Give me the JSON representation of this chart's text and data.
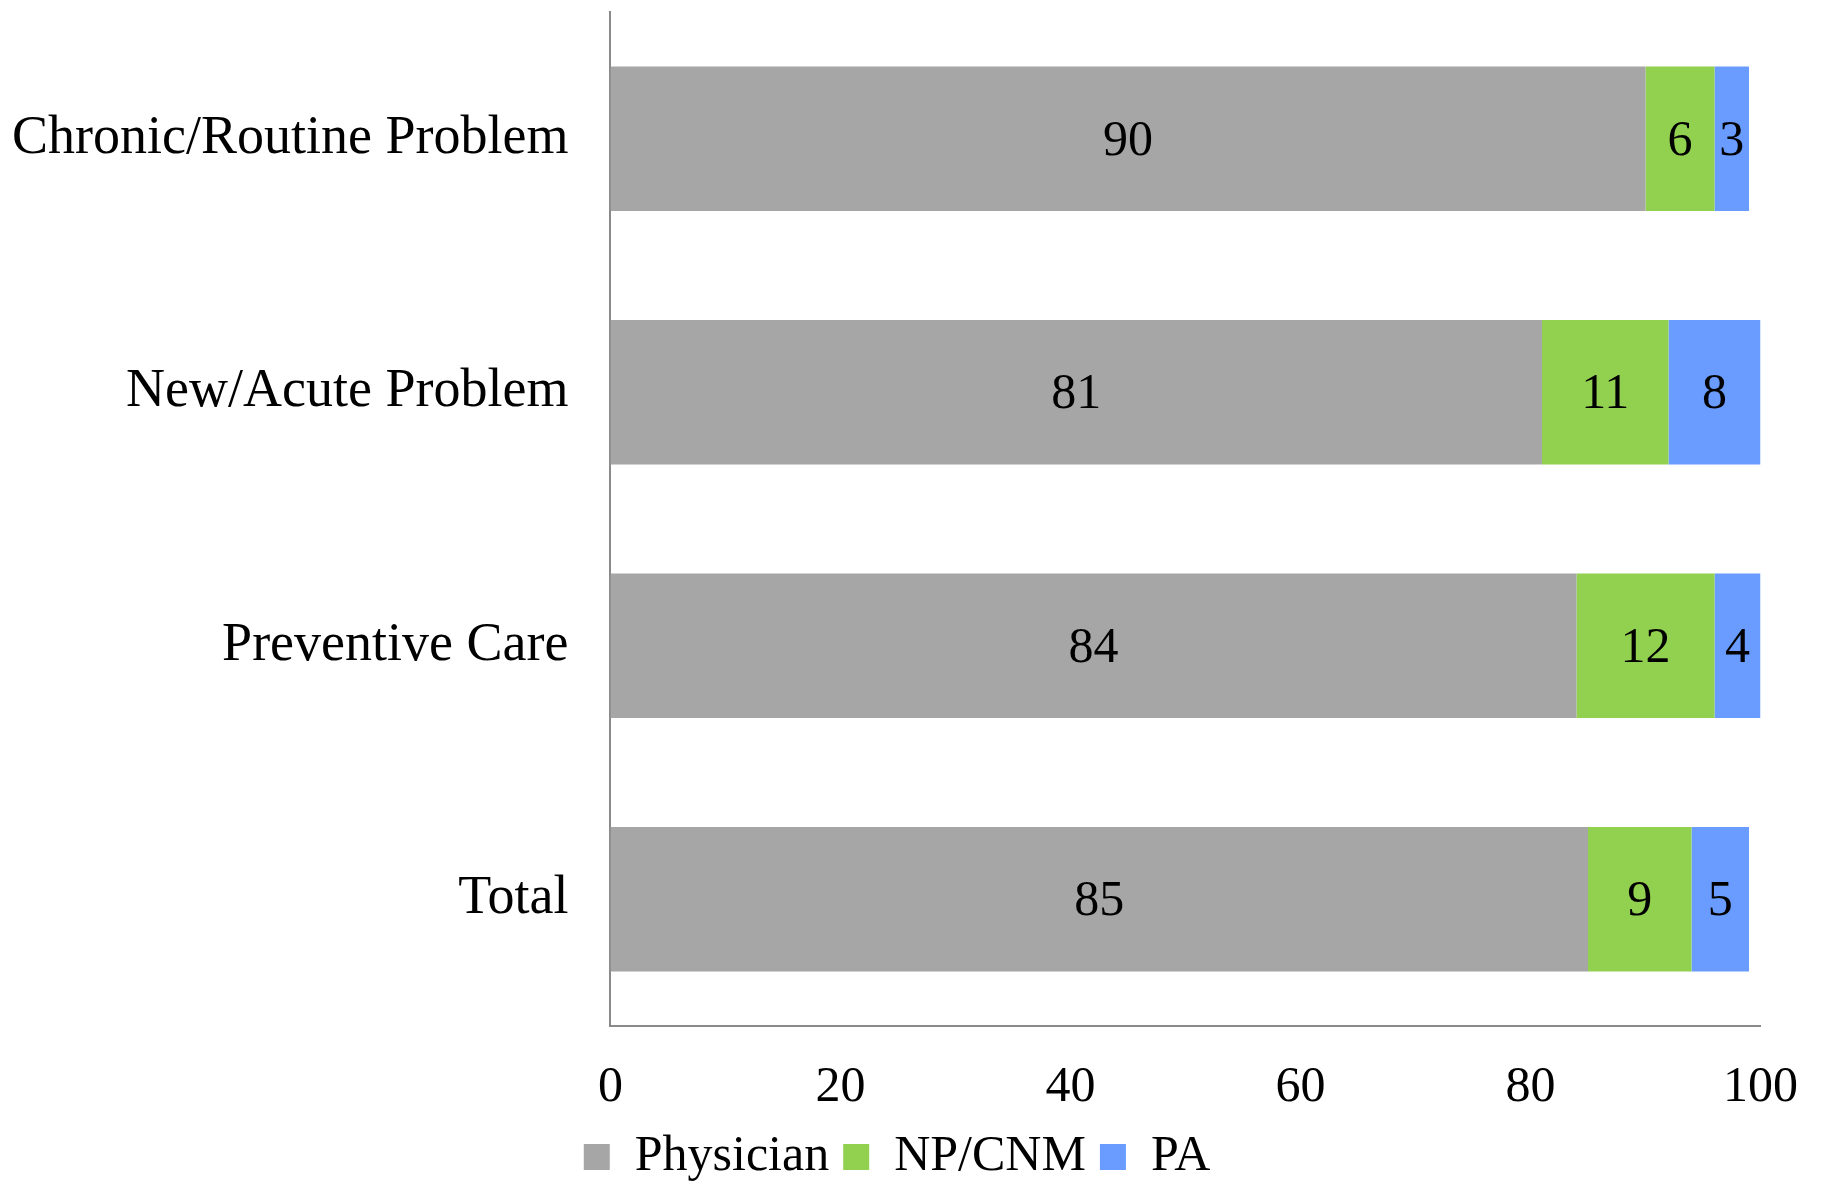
{
  "chart_data": {
    "type": "bar",
    "orientation": "horizontal",
    "stacked": true,
    "categories": [
      "Chronic/Routine Problem",
      "New/Acute Problem",
      "Preventive Care",
      "Total"
    ],
    "series": [
      {
        "name": "Physician",
        "color": "#a6a6a6",
        "values": [
          90,
          81,
          84,
          85
        ]
      },
      {
        "name": "NP/CNM",
        "color": "#92d050",
        "values": [
          6,
          11,
          12,
          9
        ]
      },
      {
        "name": "PA",
        "color": "#699cfe",
        "values": [
          3,
          8,
          4,
          5
        ]
      }
    ],
    "xlim": [
      0,
      100
    ],
    "xticks": [
      0,
      20,
      40,
      60,
      80,
      100
    ],
    "grid": false,
    "legend": "bottom",
    "data_labels": true
  }
}
